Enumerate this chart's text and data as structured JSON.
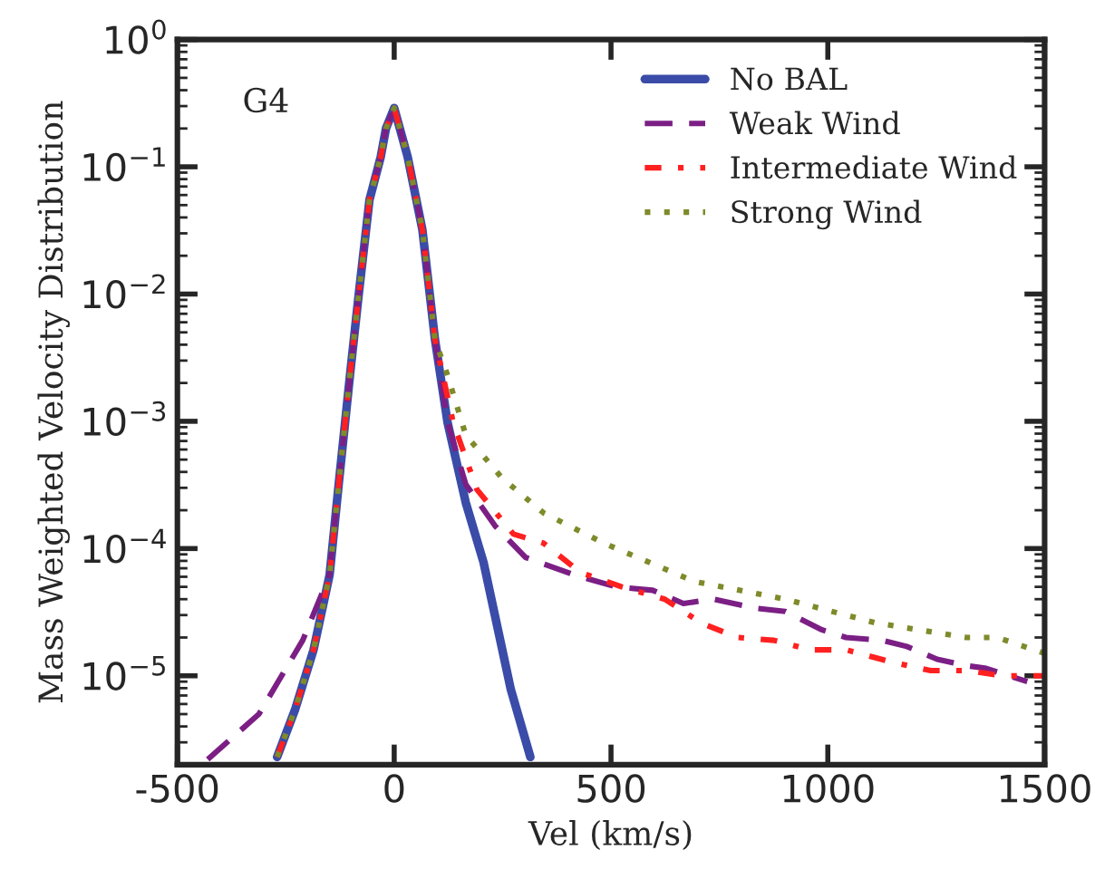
{
  "chart_data": {
    "type": "line",
    "xlabel": "Vel (km/s)",
    "ylabel": "Mass Weighted Velocity Distribution",
    "annotations": [
      "G4"
    ],
    "log": "y",
    "xlim": [
      -500,
      1500
    ],
    "xticks": [
      -500,
      0,
      500,
      1000,
      1500
    ],
    "ylim": [
      2e-06,
      1
    ],
    "yticks": [
      {
        "value": 1e-05,
        "label": "10$^{−5}$"
      },
      {
        "value": 0.0001,
        "label": "10$^{−4}$"
      },
      {
        "value": 0.001,
        "label": "10$^{−3}$"
      },
      {
        "value": 0.01,
        "label": "10$^{−2}$"
      },
      {
        "value": 0.1,
        "label": "10$^{−1}$"
      },
      {
        "value": 1,
        "label": "10$^{0}$"
      }
    ],
    "grid": false,
    "legend": "top right",
    "marker": "none",
    "series": [
      {
        "name": "No BAL",
        "color": "#3a4ca8",
        "line_style": "solid",
        "x": [
          -270,
          -228,
          -186,
          -149,
          -128,
          -102,
          -82,
          -57,
          -31,
          -19,
          0,
          31,
          65,
          94,
          123,
          165,
          206,
          233,
          269,
          314
        ],
        "values": [
          2.3e-06,
          5.5e-06,
          1.6e-05,
          6.2e-05,
          0.00032,
          0.0023,
          0.0098,
          0.055,
          0.12,
          0.2,
          0.29,
          0.12,
          0.032,
          0.0044,
          0.00098,
          0.00023,
          7.8e-05,
          2.9e-05,
          7.8e-06,
          2.3e-06
        ]
      },
      {
        "name": "Weak Wind",
        "color": "#7b1f85",
        "line_style": "dashed",
        "x": [
          -430,
          -312,
          -211,
          -149,
          -128,
          -102,
          -82,
          -57,
          -31,
          -19,
          0,
          31,
          65,
          94,
          123,
          165,
          233,
          303,
          416,
          512,
          596,
          667,
          736,
          834,
          902,
          986,
          1042,
          1126,
          1182,
          1252,
          1320,
          1362,
          1460
        ],
        "values": [
          2.2e-06,
          5e-06,
          1.9e-05,
          6.2e-05,
          0.00032,
          0.0023,
          0.0098,
          0.055,
          0.12,
          0.2,
          0.29,
          0.12,
          0.032,
          0.0044,
          0.00098,
          0.00032,
          0.00015,
          8.5e-05,
          6.2e-05,
          5e-05,
          4.7e-05,
          3.7e-05,
          4e-05,
          3.4e-05,
          3.2e-05,
          2.3e-05,
          2e-05,
          1.9e-05,
          1.7e-05,
          1.35e-05,
          1.2e-05,
          1.15e-05,
          9e-06
        ]
      },
      {
        "name": "Intermediate Wind",
        "color": "#ff2020",
        "line_style": "dashdot",
        "x": [
          -270,
          -228,
          -186,
          -149,
          -128,
          -102,
          -82,
          -57,
          -31,
          -19,
          0,
          31,
          65,
          94,
          136,
          191,
          275,
          345,
          429,
          525,
          624,
          708,
          792,
          876,
          959,
          1042,
          1140,
          1237,
          1320,
          1404,
          1500
        ],
        "values": [
          2.3e-06,
          5.5e-06,
          1.6e-05,
          6.2e-05,
          0.00032,
          0.0023,
          0.0098,
          0.055,
          0.12,
          0.2,
          0.29,
          0.12,
          0.032,
          0.0044,
          0.00098,
          0.00029,
          0.00013,
          0.00011,
          6.5e-05,
          5e-05,
          4e-05,
          2.6e-05,
          2e-05,
          1.9e-05,
          1.6e-05,
          1.6e-05,
          1.3e-05,
          1.1e-05,
          1.1e-05,
          1e-05,
          1e-05
        ]
      },
      {
        "name": "Strong Wind",
        "color": "#7f8a2a",
        "line_style": "dotted",
        "x": [
          -270,
          -228,
          -186,
          -149,
          -128,
          -102,
          -82,
          -57,
          -31,
          -19,
          0,
          31,
          65,
          94,
          123,
          165,
          248,
          345,
          484,
          693,
          902,
          1111,
          1320,
          1391,
          1500
        ],
        "values": [
          2.3e-06,
          5.5e-06,
          1.6e-05,
          6.2e-05,
          0.00032,
          0.0023,
          0.0098,
          0.055,
          0.12,
          0.2,
          0.29,
          0.12,
          0.032,
          0.0044,
          0.0023,
          0.00078,
          0.00036,
          0.00019,
          0.00011,
          5.5e-05,
          4e-05,
          2.6e-05,
          2e-05,
          2e-05,
          1.5e-05
        ]
      }
    ]
  }
}
